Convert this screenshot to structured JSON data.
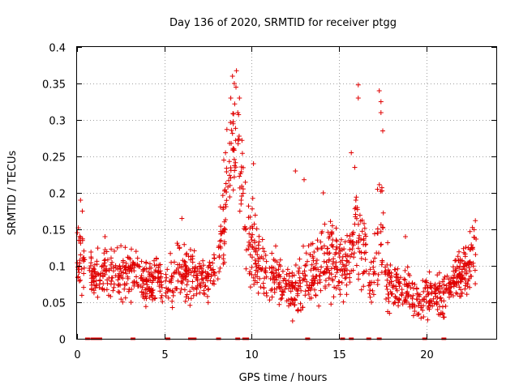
{
  "chart_data": {
    "type": "scatter",
    "title": "Day 136 of 2020, SRMTID for receiver ptgg",
    "xlabel": "GPS time / hours",
    "ylabel": "SRMTID / TECUs",
    "xlim": [
      0,
      24
    ],
    "ylim": [
      0,
      0.4
    ],
    "x_ticks": [
      0,
      5,
      10,
      15,
      20
    ],
    "y_ticks": [
      0,
      0.05,
      0.1,
      0.15,
      0.2,
      0.25,
      0.3,
      0.35,
      0.4
    ],
    "x_tick_labels": [
      "0",
      "5",
      "10",
      "15",
      "20"
    ],
    "y_tick_labels": [
      "0",
      "0.05",
      "0.1",
      "0.15",
      "0.2",
      "0.25",
      "0.3",
      "0.35",
      "0.4"
    ],
    "grid": true,
    "marker": "+",
    "color": "#e00000",
    "envelope": [
      [
        0.0,
        0.11,
        0.04
      ],
      [
        0.3,
        0.12,
        0.04
      ],
      [
        0.6,
        0.09,
        0.02
      ],
      [
        1.0,
        0.085,
        0.025
      ],
      [
        1.5,
        0.09,
        0.025
      ],
      [
        2.0,
        0.09,
        0.025
      ],
      [
        2.5,
        0.085,
        0.025
      ],
      [
        3.0,
        0.09,
        0.025
      ],
      [
        3.5,
        0.08,
        0.025
      ],
      [
        4.0,
        0.075,
        0.02
      ],
      [
        4.5,
        0.08,
        0.02
      ],
      [
        5.0,
        0.075,
        0.02
      ],
      [
        5.5,
        0.085,
        0.025
      ],
      [
        6.0,
        0.09,
        0.025
      ],
      [
        6.5,
        0.09,
        0.025
      ],
      [
        7.0,
        0.085,
        0.02
      ],
      [
        7.5,
        0.085,
        0.02
      ],
      [
        8.0,
        0.09,
        0.02
      ],
      [
        8.3,
        0.14,
        0.05
      ],
      [
        8.6,
        0.21,
        0.06
      ],
      [
        8.9,
        0.28,
        0.06
      ],
      [
        9.2,
        0.28,
        0.06
      ],
      [
        9.4,
        0.22,
        0.06
      ],
      [
        9.7,
        0.14,
        0.04
      ],
      [
        10.0,
        0.13,
        0.04
      ],
      [
        10.5,
        0.1,
        0.03
      ],
      [
        11.0,
        0.085,
        0.025
      ],
      [
        11.5,
        0.085,
        0.025
      ],
      [
        12.0,
        0.07,
        0.02
      ],
      [
        12.5,
        0.065,
        0.025
      ],
      [
        13.0,
        0.08,
        0.03
      ],
      [
        13.5,
        0.09,
        0.03
      ],
      [
        14.0,
        0.1,
        0.035
      ],
      [
        14.5,
        0.11,
        0.04
      ],
      [
        15.0,
        0.1,
        0.035
      ],
      [
        15.5,
        0.1,
        0.035
      ],
      [
        16.0,
        0.16,
        0.05
      ],
      [
        16.3,
        0.13,
        0.04
      ],
      [
        16.7,
        0.08,
        0.025
      ],
      [
        17.0,
        0.09,
        0.03
      ],
      [
        17.4,
        0.16,
        0.05
      ],
      [
        17.7,
        0.09,
        0.03
      ],
      [
        18.0,
        0.075,
        0.025
      ],
      [
        18.5,
        0.07,
        0.02
      ],
      [
        19.0,
        0.065,
        0.02
      ],
      [
        19.5,
        0.055,
        0.02
      ],
      [
        20.0,
        0.055,
        0.02
      ],
      [
        20.5,
        0.06,
        0.02
      ],
      [
        21.0,
        0.065,
        0.02
      ],
      [
        21.5,
        0.075,
        0.02
      ],
      [
        22.0,
        0.085,
        0.025
      ],
      [
        22.5,
        0.1,
        0.03
      ],
      [
        22.8,
        0.12,
        0.035
      ]
    ],
    "peaks": [
      {
        "x": 8.9,
        "y": 0.36
      },
      {
        "x": 9.0,
        "y": 0.35
      },
      {
        "x": 9.1,
        "y": 0.345
      },
      {
        "x": 9.3,
        "y": 0.33
      },
      {
        "x": 8.8,
        "y": 0.33
      },
      {
        "x": 9.2,
        "y": 0.31
      },
      {
        "x": 8.5,
        "y": 0.255
      },
      {
        "x": 8.4,
        "y": 0.245
      },
      {
        "x": 10.1,
        "y": 0.24
      },
      {
        "x": 12.5,
        "y": 0.23
      },
      {
        "x": 13.0,
        "y": 0.218
      },
      {
        "x": 14.1,
        "y": 0.2
      },
      {
        "x": 15.7,
        "y": 0.255
      },
      {
        "x": 15.9,
        "y": 0.235
      },
      {
        "x": 16.1,
        "y": 0.348
      },
      {
        "x": 16.1,
        "y": 0.33
      },
      {
        "x": 17.3,
        "y": 0.34
      },
      {
        "x": 17.4,
        "y": 0.325
      },
      {
        "x": 17.4,
        "y": 0.31
      },
      {
        "x": 17.5,
        "y": 0.285
      },
      {
        "x": 17.2,
        "y": 0.205
      },
      {
        "x": 0.2,
        "y": 0.19
      },
      {
        "x": 0.3,
        "y": 0.175
      },
      {
        "x": 6.0,
        "y": 0.165
      },
      {
        "x": 22.8,
        "y": 0.162
      },
      {
        "x": 18.8,
        "y": 0.14
      },
      {
        "x": 1.6,
        "y": 0.14
      }
    ],
    "zero_markers": [
      0.6,
      0.9,
      1.1,
      1.3,
      3.2,
      5.2,
      6.5,
      6.7,
      8.1,
      9.2,
      9.6,
      9.7,
      13.2,
      15.2,
      15.7,
      16.7,
      17.3,
      19.9,
      21.0
    ]
  }
}
